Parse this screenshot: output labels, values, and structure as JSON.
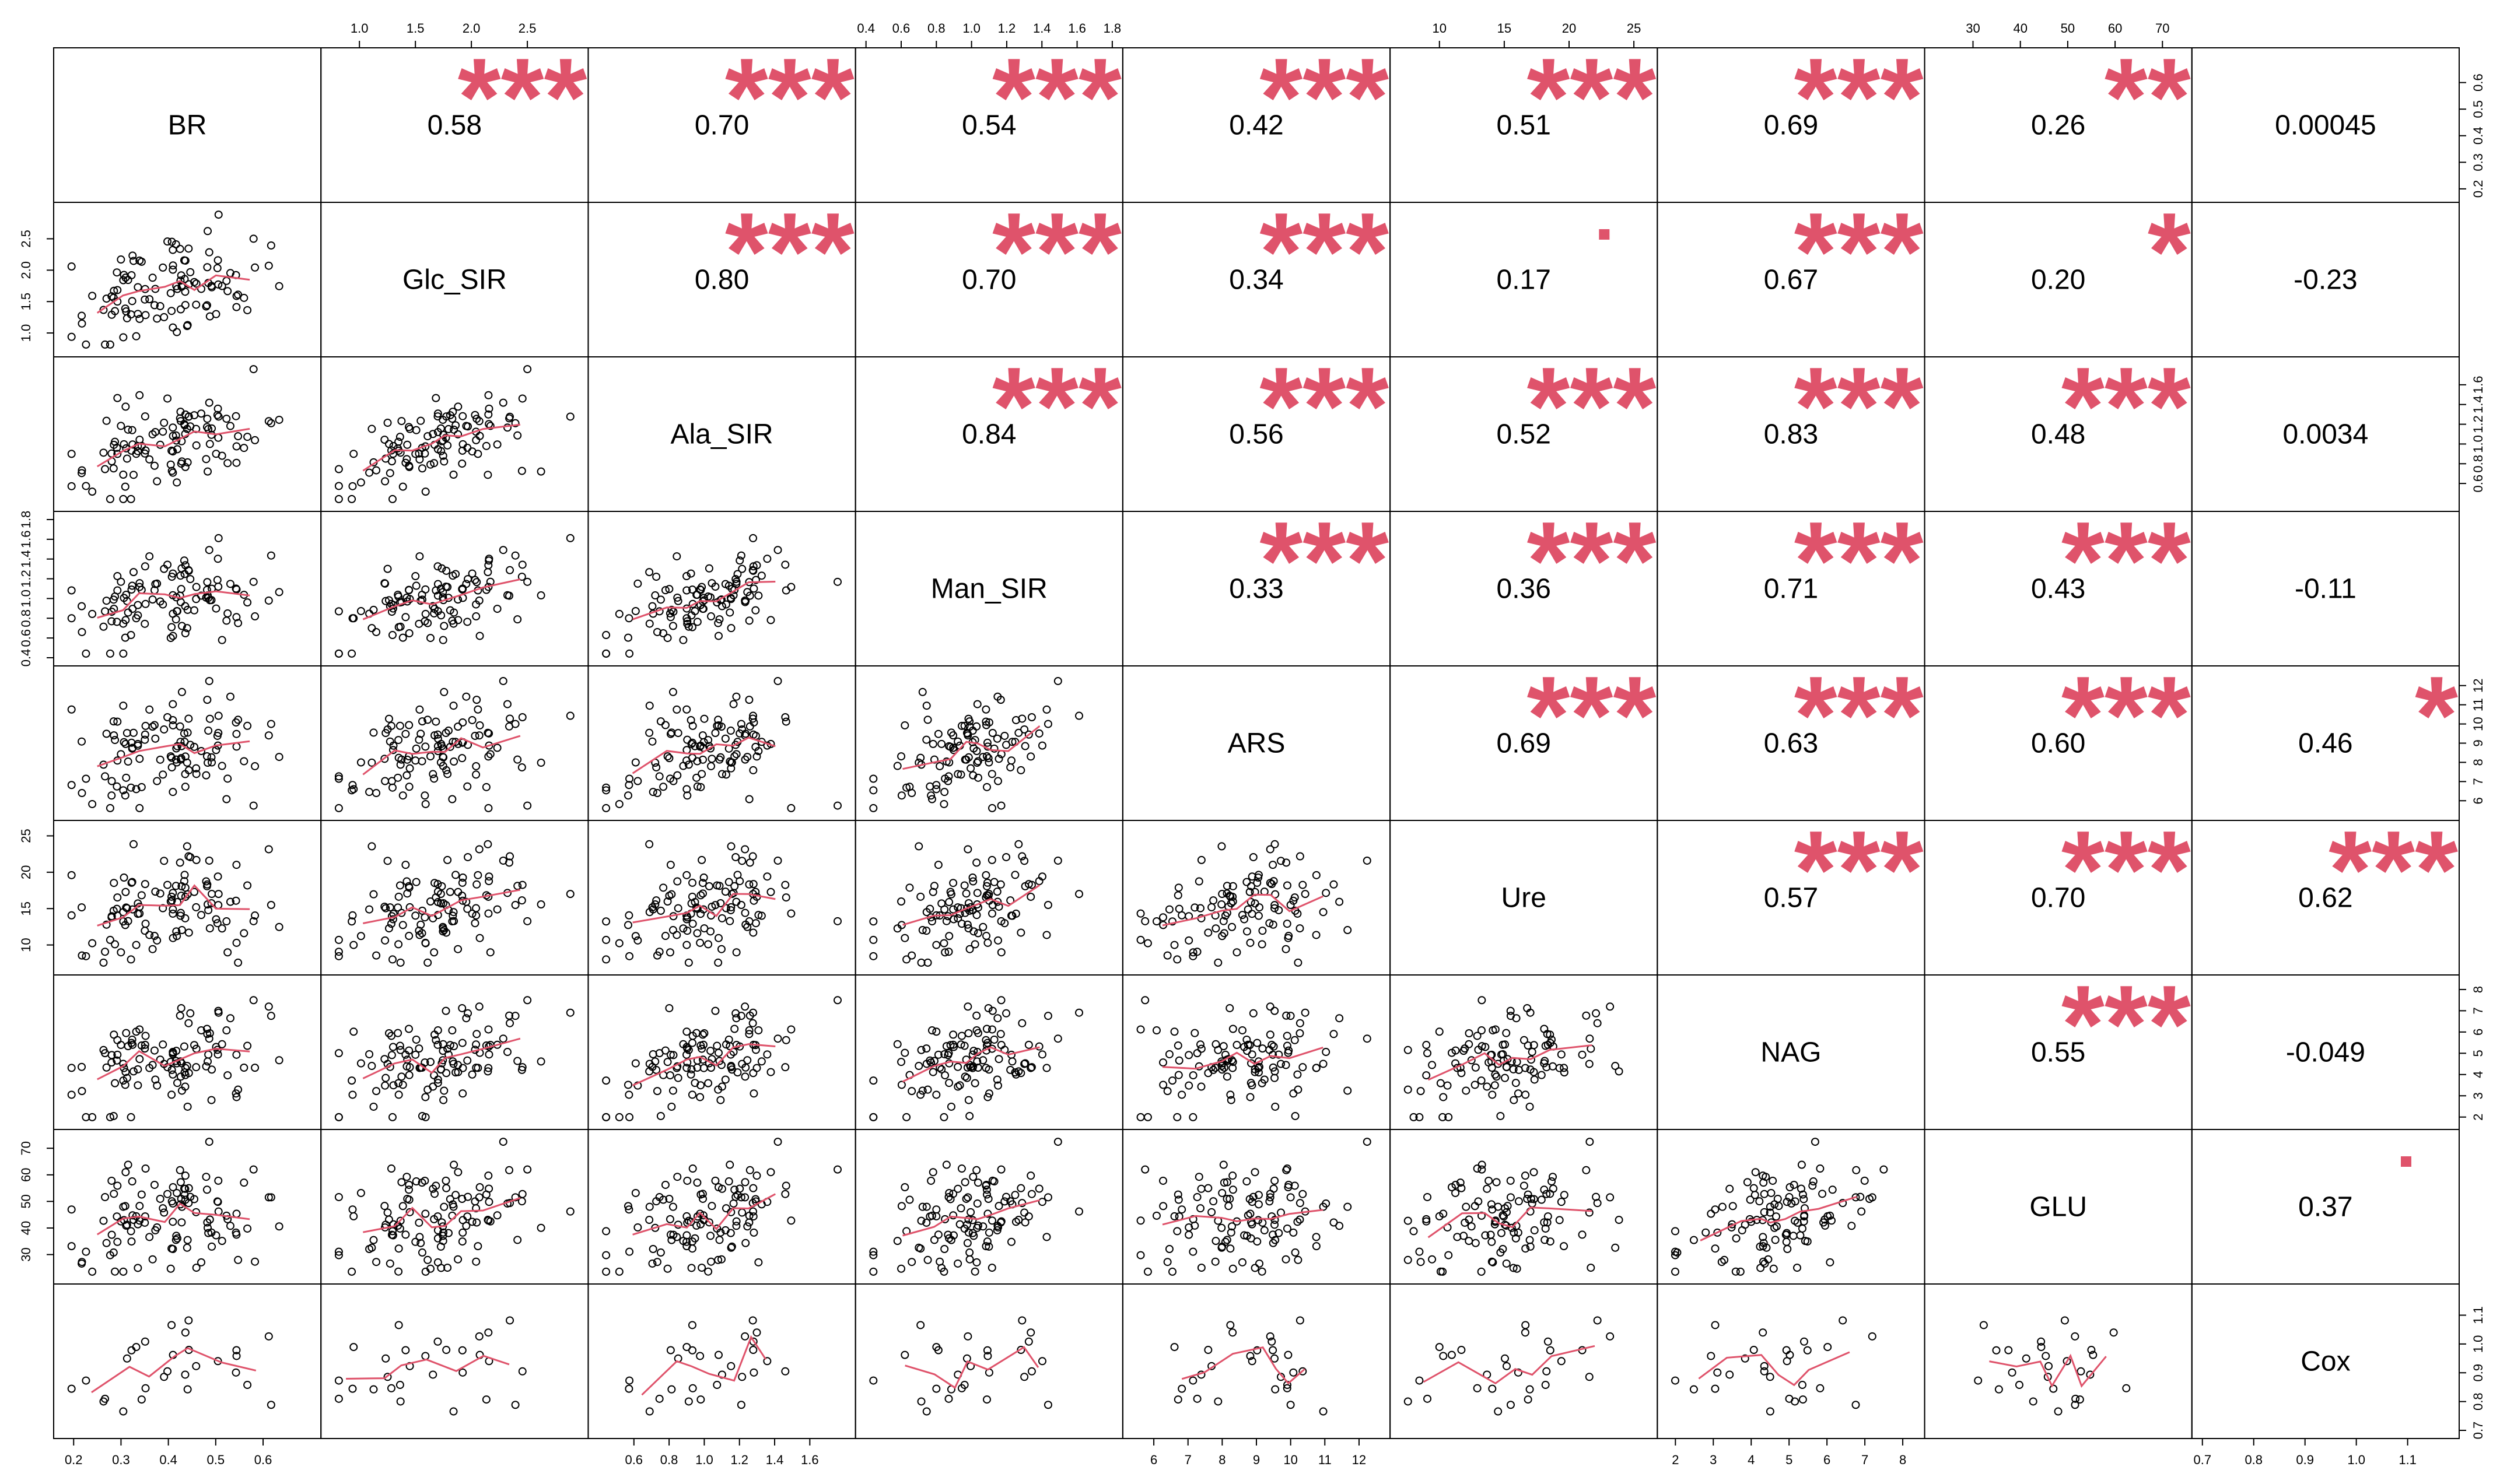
{
  "chart_data": {
    "type": "scatter-matrix",
    "variables": [
      "BR",
      "Glc_SIR",
      "Ala_SIR",
      "Man_SIR",
      "ARS",
      "Ure",
      "NAG",
      "GLU",
      "Cox"
    ],
    "ranges": [
      [
        0.18,
        0.7
      ],
      [
        0.75,
        2.95
      ],
      [
        0.4,
        1.8
      ],
      [
        0.4,
        1.8
      ],
      [
        5.4,
        12.6
      ],
      [
        7,
        26
      ],
      [
        1.8,
        8.3
      ],
      [
        22,
        74
      ],
      [
        0.7,
        1.18
      ]
    ],
    "ticks": {
      "BR": [
        "0.2",
        "0.3",
        "0.4",
        "0.5",
        "0.6"
      ],
      "Glc_SIR": [
        "1.0",
        "1.5",
        "2.0",
        "2.5"
      ],
      "Ala_SIR": [
        "0.6",
        "0.8",
        "1.0",
        "1.2",
        "1.4",
        "1.6"
      ],
      "Man_SIR": [
        "0.4",
        "0.6",
        "0.8",
        "1.0",
        "1.2",
        "1.4",
        "1.6",
        "1.8"
      ],
      "ARS": [
        "6",
        "7",
        "8",
        "9",
        "10",
        "11",
        "12"
      ],
      "Ure": [
        "10",
        "15",
        "20",
        "25"
      ],
      "NAG": [
        "2",
        "3",
        "4",
        "5",
        "6",
        "7",
        "8"
      ],
      "GLU": [
        "30",
        "40",
        "50",
        "60",
        "70"
      ],
      "Cox": [
        "0.7",
        "0.8",
        "0.9",
        "1.0",
        "1.1"
      ]
    },
    "correlations": [
      {
        "row": 0,
        "col": 1,
        "value": "0.58",
        "stars": "***"
      },
      {
        "row": 0,
        "col": 2,
        "value": "0.70",
        "stars": "***"
      },
      {
        "row": 0,
        "col": 3,
        "value": "0.54",
        "stars": "***"
      },
      {
        "row": 0,
        "col": 4,
        "value": "0.42",
        "stars": "***"
      },
      {
        "row": 0,
        "col": 5,
        "value": "0.51",
        "stars": "***"
      },
      {
        "row": 0,
        "col": 6,
        "value": "0.69",
        "stars": "***"
      },
      {
        "row": 0,
        "col": 7,
        "value": "0.26",
        "stars": "**"
      },
      {
        "row": 0,
        "col": 8,
        "value": "0.00045",
        "stars": ""
      },
      {
        "row": 1,
        "col": 2,
        "value": "0.80",
        "stars": "***"
      },
      {
        "row": 1,
        "col": 3,
        "value": "0.70",
        "stars": "***"
      },
      {
        "row": 1,
        "col": 4,
        "value": "0.34",
        "stars": "***"
      },
      {
        "row": 1,
        "col": 5,
        "value": "0.17",
        "stars": "."
      },
      {
        "row": 1,
        "col": 6,
        "value": "0.67",
        "stars": "***"
      },
      {
        "row": 1,
        "col": 7,
        "value": "0.20",
        "stars": "*"
      },
      {
        "row": 1,
        "col": 8,
        "value": "-0.23",
        "stars": ""
      },
      {
        "row": 2,
        "col": 3,
        "value": "0.84",
        "stars": "***"
      },
      {
        "row": 2,
        "col": 4,
        "value": "0.56",
        "stars": "***"
      },
      {
        "row": 2,
        "col": 5,
        "value": "0.52",
        "stars": "***"
      },
      {
        "row": 2,
        "col": 6,
        "value": "0.83",
        "stars": "***"
      },
      {
        "row": 2,
        "col": 7,
        "value": "0.48",
        "stars": "***"
      },
      {
        "row": 2,
        "col": 8,
        "value": "0.0034",
        "stars": ""
      },
      {
        "row": 3,
        "col": 4,
        "value": "0.33",
        "stars": "***"
      },
      {
        "row": 3,
        "col": 5,
        "value": "0.36",
        "stars": "***"
      },
      {
        "row": 3,
        "col": 6,
        "value": "0.71",
        "stars": "***"
      },
      {
        "row": 3,
        "col": 7,
        "value": "0.43",
        "stars": "***"
      },
      {
        "row": 3,
        "col": 8,
        "value": "-0.11",
        "stars": ""
      },
      {
        "row": 4,
        "col": 5,
        "value": "0.69",
        "stars": "***"
      },
      {
        "row": 4,
        "col": 6,
        "value": "0.63",
        "stars": "***"
      },
      {
        "row": 4,
        "col": 7,
        "value": "0.60",
        "stars": "***"
      },
      {
        "row": 4,
        "col": 8,
        "value": "0.46",
        "stars": "*"
      },
      {
        "row": 5,
        "col": 6,
        "value": "0.57",
        "stars": "***"
      },
      {
        "row": 5,
        "col": 7,
        "value": "0.70",
        "stars": "***"
      },
      {
        "row": 5,
        "col": 8,
        "value": "0.62",
        "stars": "***"
      },
      {
        "row": 6,
        "col": 7,
        "value": "0.55",
        "stars": "***"
      },
      {
        "row": 6,
        "col": 8,
        "value": "-0.049",
        "stars": ""
      },
      {
        "row": 7,
        "col": 8,
        "value": "0.37",
        "stars": "."
      }
    ],
    "scatter_points_per_panel": "≈100 observations (≈25 for Cox pairs)",
    "smoother_color": "#DF536B",
    "star_color": "#DF536B",
    "point_color": "#000000"
  }
}
